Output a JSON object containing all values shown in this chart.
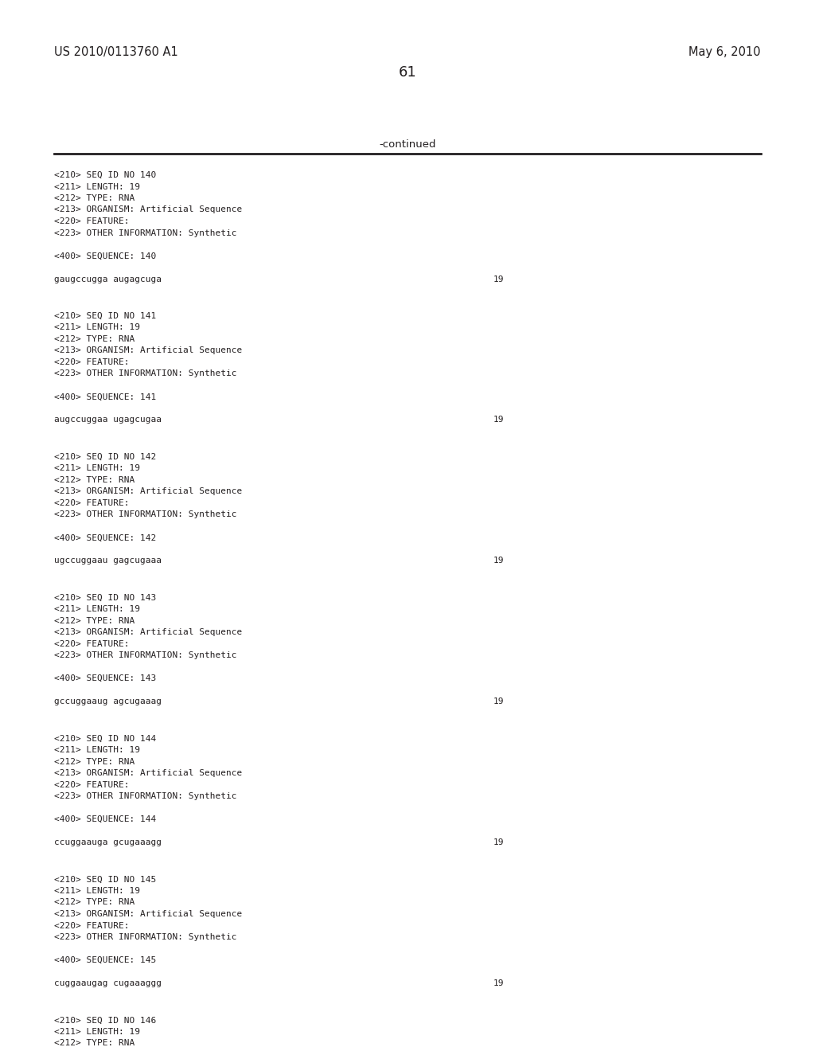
{
  "header_left": "US 2010/0113760 A1",
  "header_right": "May 6, 2010",
  "page_number": "61",
  "continued_text": "-continued",
  "background_color": "#ffffff",
  "text_color": "#231f20",
  "font_size_header": 10.5,
  "font_size_mono": 8.0,
  "font_size_page": 13,
  "font_size_continued": 9.5,
  "entries": [
    {
      "seq_id": "140",
      "length": "19",
      "type": "RNA",
      "organism": "Artificial Sequence",
      "other_info": "Synthetic",
      "sequence": "gaugccugga augagcuga",
      "seq_length_num": "19"
    },
    {
      "seq_id": "141",
      "length": "19",
      "type": "RNA",
      "organism": "Artificial Sequence",
      "other_info": "Synthetic",
      "sequence": "augccuggaa ugagcugaa",
      "seq_length_num": "19"
    },
    {
      "seq_id": "142",
      "length": "19",
      "type": "RNA",
      "organism": "Artificial Sequence",
      "other_info": "Synthetic",
      "sequence": "ugccuggaau gagcugaaa",
      "seq_length_num": "19"
    },
    {
      "seq_id": "143",
      "length": "19",
      "type": "RNA",
      "organism": "Artificial Sequence",
      "other_info": "Synthetic",
      "sequence": "gccuggaaug agcugaaag",
      "seq_length_num": "19"
    },
    {
      "seq_id": "144",
      "length": "19",
      "type": "RNA",
      "organism": "Artificial Sequence",
      "other_info": "Synthetic",
      "sequence": "ccuggaauga gcugaaagg",
      "seq_length_num": "19"
    },
    {
      "seq_id": "145",
      "length": "19",
      "type": "RNA",
      "organism": "Artificial Sequence",
      "other_info": "Synthetic",
      "sequence": "cuggaaugag cugaaaggg",
      "seq_length_num": "19"
    },
    {
      "seq_id": "146",
      "length": "19",
      "type": "RNA",
      "organism": "",
      "other_info": "",
      "sequence": "",
      "seq_length_num": ""
    }
  ]
}
